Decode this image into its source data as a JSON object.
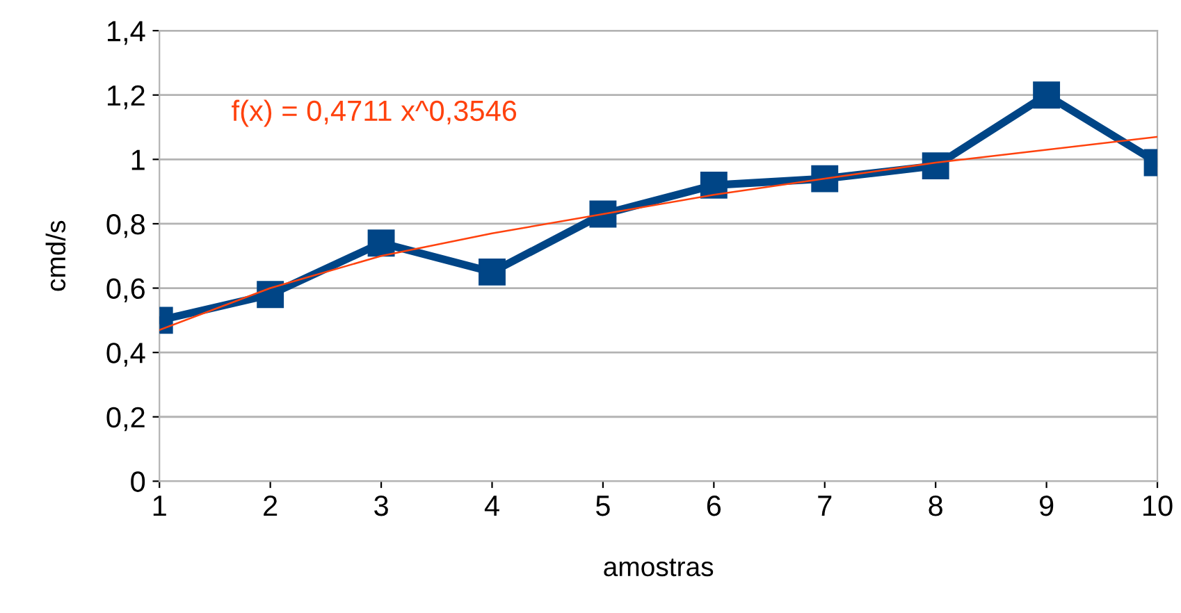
{
  "chart_data": {
    "type": "line",
    "xlabel": "amostras",
    "ylabel": "cmd/s",
    "x": [
      1,
      2,
      3,
      4,
      5,
      6,
      7,
      8,
      9,
      10
    ],
    "series": [
      {
        "color": "#004586",
        "values": [
          0.5,
          0.58,
          0.74,
          0.65,
          0.83,
          0.92,
          0.94,
          0.98,
          1.2,
          0.99
        ],
        "marker": "square",
        "line_style": "solid"
      },
      {
        "type": "line",
        "color": "#ff420e",
        "x": [
          1,
          2,
          3,
          4,
          5,
          6,
          7,
          8,
          9,
          10
        ],
        "values": [
          0.47,
          0.6,
          0.7,
          0.77,
          0.83,
          0.89,
          0.94,
          0.99,
          1.03,
          1.07
        ],
        "marker": "none",
        "line_style": "solid"
      }
    ],
    "annotations": [
      "f(x) = 0,4711 x^0,3546"
    ],
    "xlim": [
      1,
      10
    ],
    "xticks": [
      1,
      2,
      3,
      4,
      5,
      6,
      7,
      8,
      9,
      10
    ],
    "ylim": [
      0,
      1.4
    ],
    "yticks": [
      0,
      {
        "value": 0.2,
        "label": "0,2"
      },
      {
        "value": 0.4,
        "label": "0,4"
      },
      {
        "value": 0.6,
        "label": "0,6"
      },
      {
        "value": 0.8,
        "label": "0,8"
      },
      1,
      {
        "value": 1.2,
        "label": "1,2"
      },
      {
        "value": 1.4,
        "label": "1,4"
      }
    ],
    "grid": "y",
    "legend": false
  }
}
